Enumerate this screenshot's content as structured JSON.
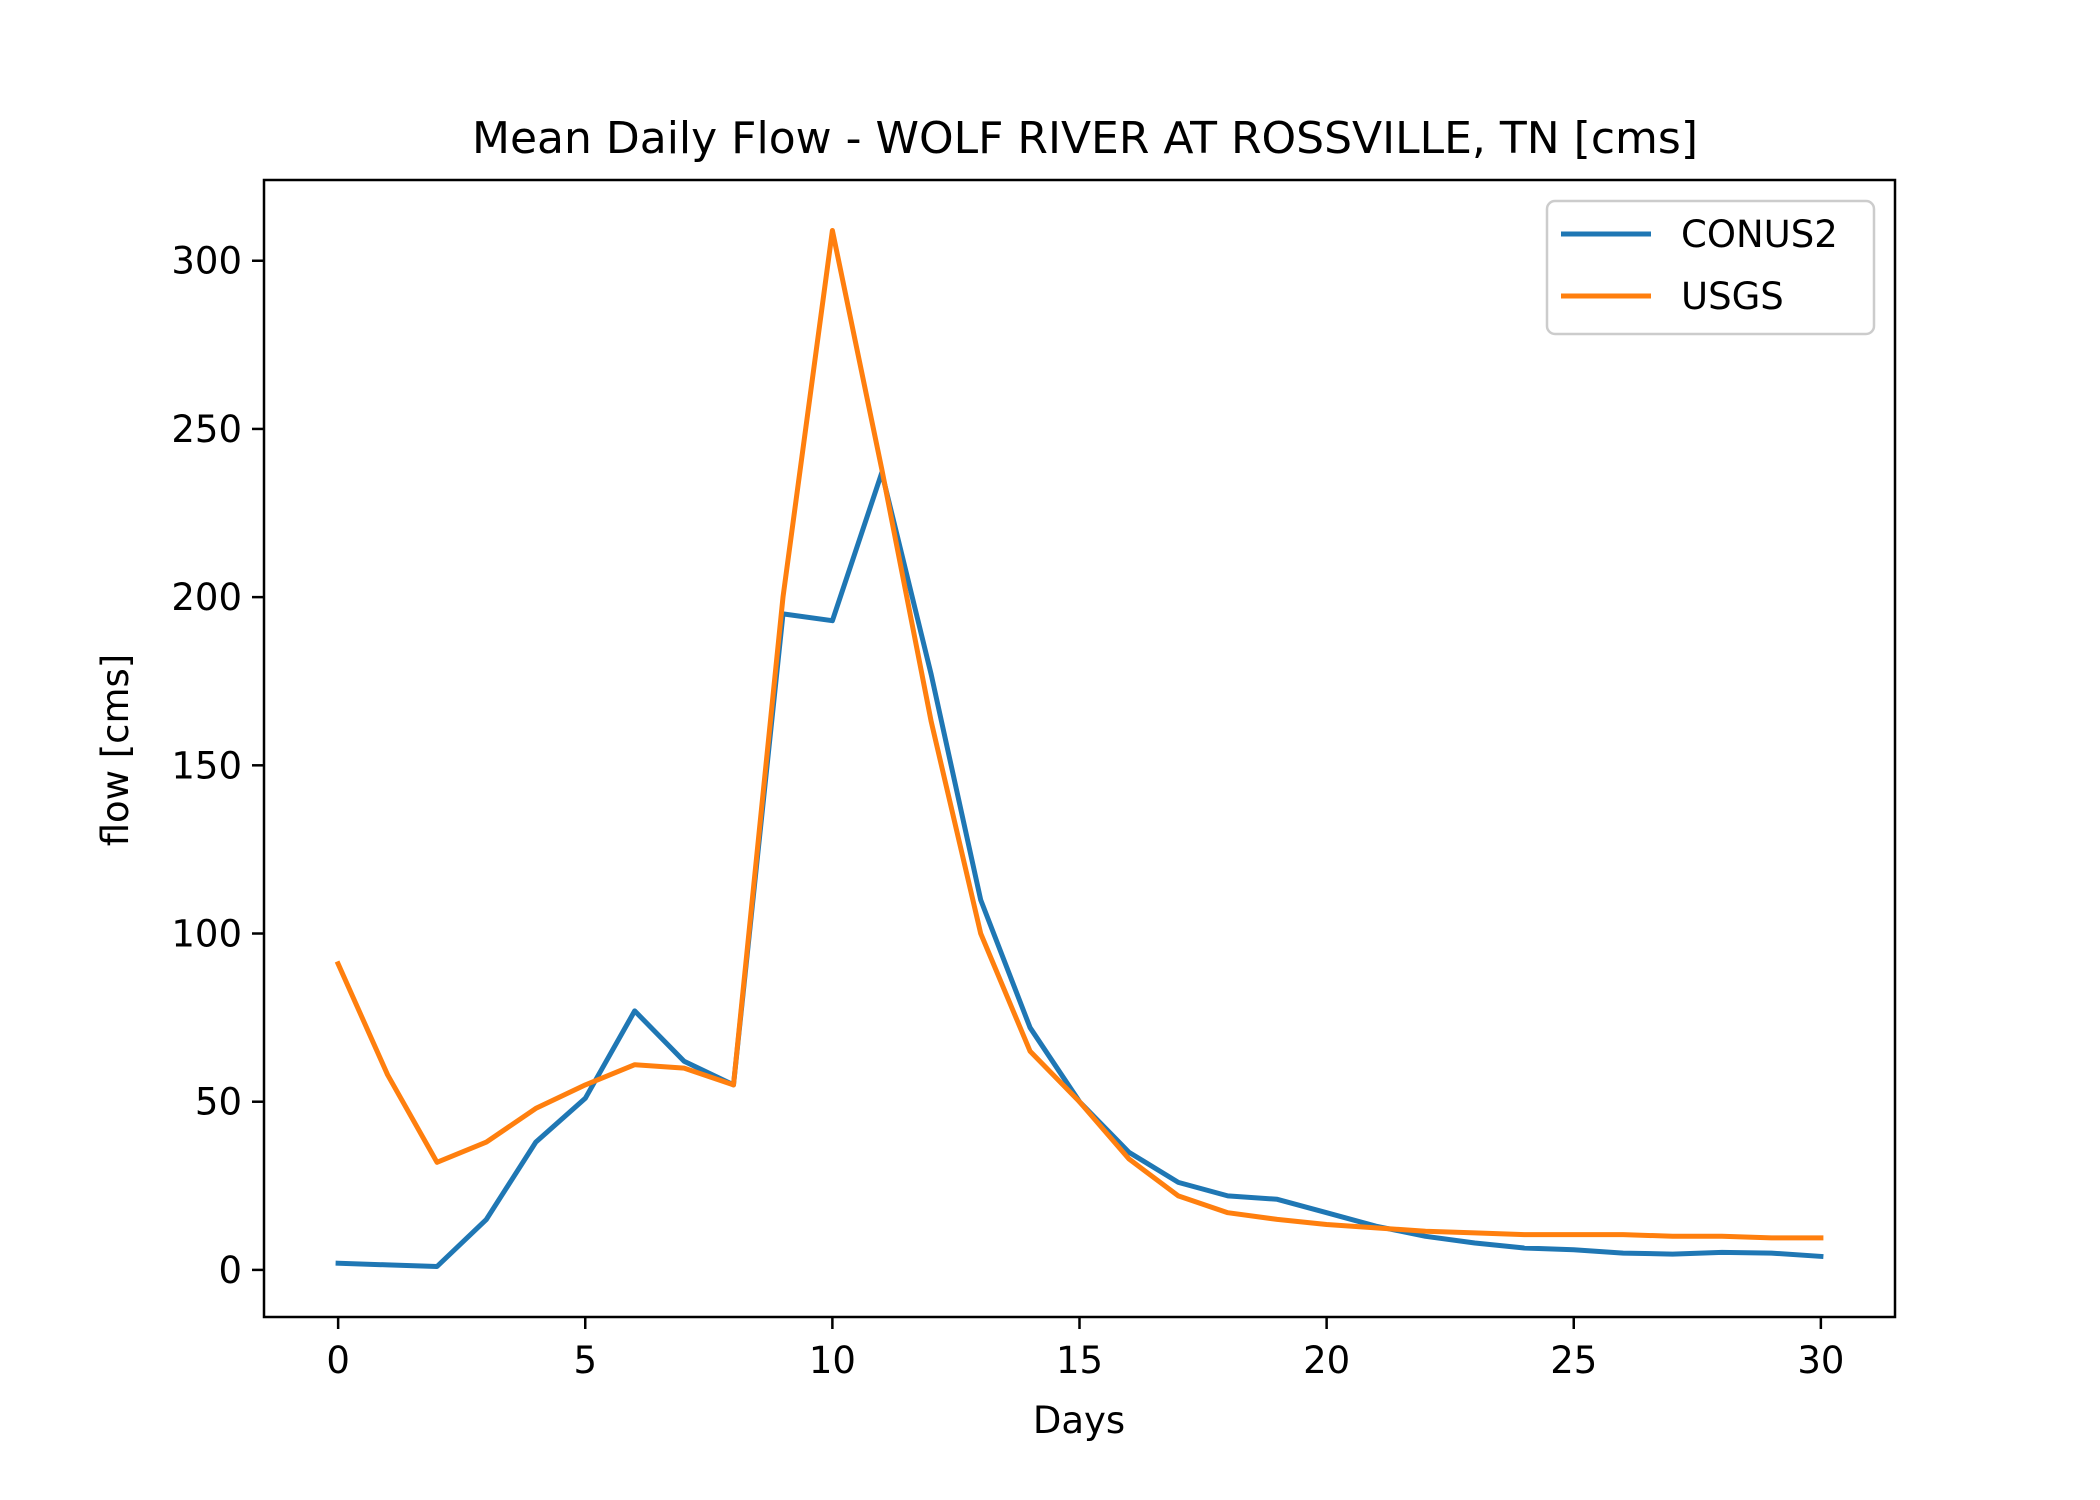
{
  "chart_data": {
    "type": "line",
    "title": "Mean Daily Flow - WOLF RIVER AT ROSSVILLE, TN [cms]",
    "xlabel": "Days",
    "ylabel": "flow [cms]",
    "xlim": [
      -1.5,
      31.5
    ],
    "ylim": [
      -14,
      324
    ],
    "xticks": [
      0,
      5,
      10,
      15,
      20,
      25,
      30
    ],
    "yticks": [
      0,
      50,
      100,
      150,
      200,
      250,
      300
    ],
    "grid": false,
    "legend": "top-right",
    "x": [
      0,
      1,
      2,
      3,
      4,
      5,
      6,
      7,
      8,
      9,
      10,
      11,
      12,
      13,
      14,
      15,
      16,
      17,
      18,
      19,
      20,
      21,
      22,
      23,
      24,
      25,
      26,
      27,
      28,
      29,
      30
    ],
    "series": [
      {
        "name": "CONUS2",
        "color": "#1f77b4",
        "values": [
          2,
          1.5,
          1,
          15,
          38,
          51,
          77,
          62,
          55,
          195,
          193,
          237,
          177,
          110,
          72,
          50,
          35,
          26,
          22,
          21,
          17,
          13,
          10,
          8,
          6.5,
          6,
          5,
          4.7,
          5.2,
          5,
          4
        ]
      },
      {
        "name": "USGS",
        "color": "#ff7f0e",
        "values": [
          91,
          58,
          32,
          38,
          48,
          55,
          61,
          60,
          55,
          200,
          309,
          238,
          163,
          100,
          65,
          50,
          33,
          22,
          17,
          15,
          13.5,
          12.5,
          11.5,
          11,
          10.5,
          10.5,
          10.5,
          10,
          10,
          9.5,
          9.5
        ]
      }
    ]
  }
}
